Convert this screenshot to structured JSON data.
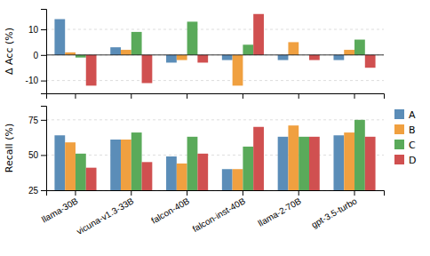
{
  "chart_data": [
    {
      "type": "bar",
      "y_label": "Δ Acc (%)",
      "categories": [
        "llama-30B",
        "vicuna-v1.3-33B",
        "falcon-40B",
        "falcon-inst-40B",
        "llama-2-70B",
        "gpt-3.5-turbo"
      ],
      "series": [
        {
          "name": "A",
          "color": "#5b8db8",
          "values": [
            14,
            3,
            -3,
            -2,
            -2,
            -2
          ]
        },
        {
          "name": "B",
          "color": "#f0a040",
          "values": [
            1,
            2,
            -2,
            -12,
            5,
            2
          ]
        },
        {
          "name": "C",
          "color": "#5aaa5a",
          "values": [
            -1,
            9,
            13,
            4,
            0,
            6
          ]
        },
        {
          "name": "D",
          "color": "#d05050",
          "values": [
            -12,
            -11,
            -3,
            16,
            -2,
            -5
          ]
        }
      ],
      "ylim": [
        -15,
        18
      ],
      "yticks": [
        -10,
        0,
        10
      ],
      "grid": true,
      "tick_labels": "y"
    },
    {
      "type": "bar",
      "y_label": "Recall (%)",
      "categories": [
        "llama-30B",
        "vicuna-v1.3-33B",
        "falcon-40B",
        "falcon-inst-40B",
        "llama-2-70B",
        "gpt-3.5-turbo"
      ],
      "series": [
        {
          "name": "A",
          "color": "#5b8db8",
          "values": [
            64,
            61,
            49,
            40,
            63,
            64
          ]
        },
        {
          "name": "B",
          "color": "#f0a040",
          "values": [
            59,
            61,
            44,
            40,
            71,
            66
          ]
        },
        {
          "name": "C",
          "color": "#5aaa5a",
          "values": [
            51,
            66,
            63,
            56,
            63,
            75
          ]
        },
        {
          "name": "D",
          "color": "#d05050",
          "values": [
            41,
            45,
            51,
            70,
            63,
            63
          ]
        }
      ],
      "ylim": [
        25,
        85
      ],
      "yticks": [
        25,
        50,
        75
      ],
      "grid": true,
      "legend": "right"
    }
  ]
}
